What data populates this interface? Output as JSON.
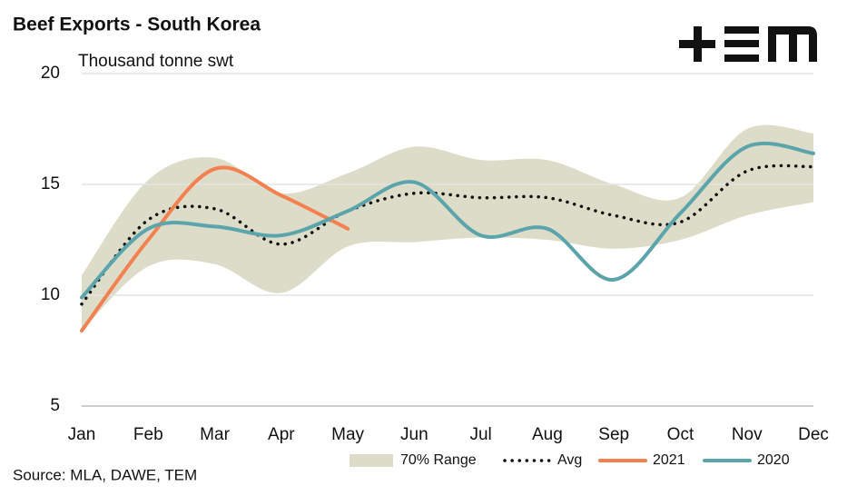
{
  "chart_data": {
    "type": "line",
    "title": "Beef Exports - South Korea",
    "y_label": "Thousand tonne swt",
    "source": "Source: MLA, DAWE, TEM",
    "categories": [
      "Jan",
      "Feb",
      "Mar",
      "Apr",
      "May",
      "Jun",
      "Jul",
      "Aug",
      "Sep",
      "Oct",
      "Nov",
      "Dec"
    ],
    "ylim": [
      5,
      20
    ],
    "yticks": [
      5,
      10,
      15,
      20
    ],
    "grid": true,
    "range": {
      "name": "70% Range",
      "color": "#dcdcc8",
      "lower": [
        8.4,
        11.3,
        11.4,
        10.1,
        12.2,
        12.4,
        12.6,
        12.5,
        12.1,
        12.5,
        13.6,
        14.2
      ],
      "upper": [
        10.9,
        15.2,
        16.2,
        14.6,
        15.5,
        16.7,
        16.1,
        16.1,
        15.0,
        14.4,
        17.5,
        17.3
      ]
    },
    "series": [
      {
        "name": "Avg",
        "color": "#111111",
        "dotted": true,
        "values": [
          9.6,
          13.4,
          13.9,
          12.3,
          13.8,
          14.6,
          14.4,
          14.4,
          13.6,
          13.3,
          15.6,
          15.8
        ]
      },
      {
        "name": "2021",
        "color": "#f4804f",
        "values": [
          8.4,
          12.5,
          15.7,
          14.5,
          13.0,
          null,
          null,
          null,
          null,
          null,
          null,
          null
        ]
      },
      {
        "name": "2020",
        "color": "#5ba4ab",
        "values": [
          9.9,
          13.0,
          13.1,
          12.7,
          13.8,
          15.1,
          12.7,
          13.0,
          10.7,
          13.7,
          16.7,
          16.4
        ]
      }
    ]
  }
}
